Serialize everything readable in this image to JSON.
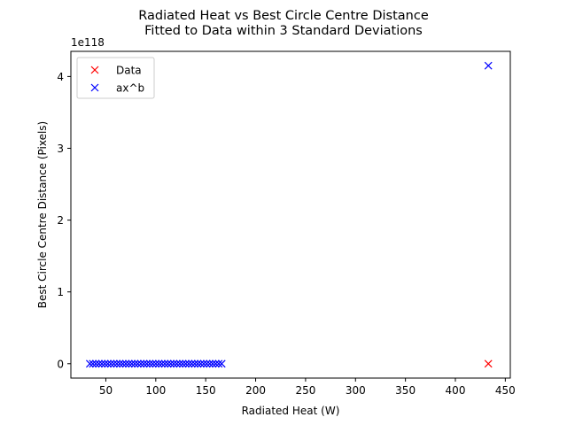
{
  "chart_data": {
    "type": "scatter",
    "title_lines": [
      "Radiated Heat vs Best Circle Centre Distance",
      "Fitted to Data within 3 Standard Deviations"
    ],
    "xlabel": "Radiated Heat (W)",
    "ylabel": "Best Circle Centre Distance (Pixels)",
    "y_offset_label": "1e118",
    "xlim": [
      15,
      455
    ],
    "ylim": [
      -0.2,
      4.35
    ],
    "y_scale_exponent": 118,
    "xticks": [
      50,
      100,
      150,
      200,
      250,
      300,
      350,
      400,
      450
    ],
    "xtick_labels": [
      "50",
      "100",
      "150",
      "200",
      "250",
      "300",
      "350",
      "400",
      "450"
    ],
    "yticks": [
      0,
      1,
      2,
      3,
      4
    ],
    "ytick_labels": [
      "0",
      "1",
      "2",
      "3",
      "4"
    ],
    "grid": false,
    "legend_placement": "upper-left",
    "series": [
      {
        "name": "Data",
        "marker": "x",
        "color": "#ff0000",
        "points": [
          [
            433,
            0
          ]
        ]
      },
      {
        "name": "ax^b",
        "marker": "x",
        "color": "#0000ff",
        "points": [
          [
            34,
            0
          ],
          [
            37,
            0
          ],
          [
            40,
            0
          ],
          [
            43,
            0
          ],
          [
            46,
            0
          ],
          [
            49,
            0
          ],
          [
            52,
            0
          ],
          [
            55,
            0
          ],
          [
            58,
            0
          ],
          [
            61,
            0
          ],
          [
            64,
            0
          ],
          [
            67,
            0
          ],
          [
            70,
            0
          ],
          [
            73,
            0
          ],
          [
            76,
            0
          ],
          [
            79,
            0
          ],
          [
            82,
            0
          ],
          [
            85,
            0
          ],
          [
            88,
            0
          ],
          [
            91,
            0
          ],
          [
            94,
            0
          ],
          [
            97,
            0
          ],
          [
            100,
            0
          ],
          [
            103,
            0
          ],
          [
            106,
            0
          ],
          [
            109,
            0
          ],
          [
            112,
            0
          ],
          [
            115,
            0
          ],
          [
            118,
            0
          ],
          [
            121,
            0
          ],
          [
            124,
            0
          ],
          [
            127,
            0
          ],
          [
            130,
            0
          ],
          [
            133,
            0
          ],
          [
            136,
            0
          ],
          [
            139,
            0
          ],
          [
            142,
            0
          ],
          [
            145,
            0
          ],
          [
            148,
            0
          ],
          [
            151,
            0
          ],
          [
            154,
            0
          ],
          [
            157,
            0
          ],
          [
            160,
            0
          ],
          [
            163,
            0
          ],
          [
            166,
            0
          ],
          [
            433,
            4.15
          ]
        ]
      }
    ]
  }
}
